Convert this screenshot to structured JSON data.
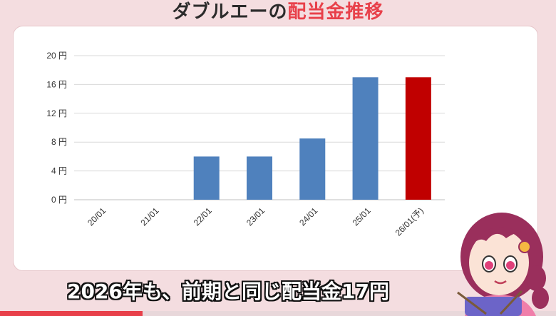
{
  "header": {
    "title_part1": "ダブルエーの",
    "title_part2": "配当金推移"
  },
  "caption": {
    "text": "2026年も、前期と同じ配当金17円"
  },
  "colors": {
    "actual_bar": "#4f81bd",
    "forecast_bar": "#c00000",
    "title_accent": "#e8404a"
  },
  "chart_data": {
    "type": "bar",
    "categories": [
      "20/01",
      "21/01",
      "22/01",
      "23/01",
      "24/01",
      "25/01",
      "26/01(予)"
    ],
    "values": [
      0,
      0,
      6,
      6,
      8.5,
      17,
      17
    ],
    "y_ticks": [
      "0 円",
      "4 円",
      "8 円",
      "12 円",
      "16 円",
      "20 円"
    ],
    "ylim": [
      0,
      20
    ],
    "grid": true,
    "forecast_index": 6
  }
}
